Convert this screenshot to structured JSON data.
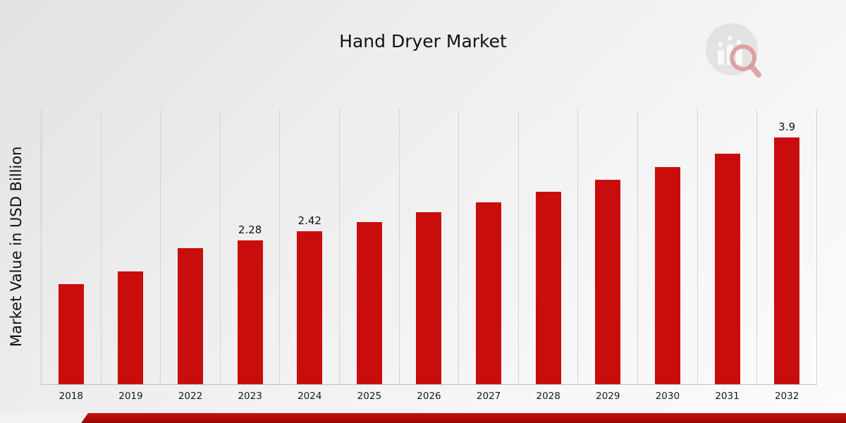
{
  "page": {
    "background_note": "light gray diagonal gradient",
    "footer_stripe_color": "#b20c0c"
  },
  "header": {
    "title": "Hand Dryer Market"
  },
  "logo": {
    "name": "market-research-bar-chart-magnifier-logo"
  },
  "chart_data": {
    "type": "bar",
    "title": "Hand Dryer Market",
    "ylabel": "Market Value in USD Billion",
    "xlabel": "",
    "categories": [
      "2018",
      "2019",
      "2022",
      "2023",
      "2024",
      "2025",
      "2026",
      "2027",
      "2028",
      "2029",
      "2030",
      "2031",
      "2032"
    ],
    "values": [
      1.58,
      1.79,
      2.15,
      2.28,
      2.42,
      2.56,
      2.72,
      2.88,
      3.05,
      3.24,
      3.43,
      3.65,
      3.9
    ],
    "labeled_values": {
      "2023": "2.28",
      "2024": "2.42",
      "2032": "3.9"
    },
    "ylim": [
      0,
      4.35
    ],
    "bar_color": "#c90d0d",
    "grid": "vertical",
    "legend": "none"
  }
}
